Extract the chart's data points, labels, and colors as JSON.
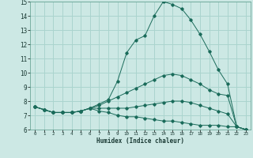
{
  "xlabel": "Humidex (Indice chaleur)",
  "bg_color": "#cce8e4",
  "grid_color": "#aad4ce",
  "line_color": "#1a6b5a",
  "xlim": [
    -0.5,
    23.5
  ],
  "ylim": [
    6,
    15
  ],
  "xticks": [
    0,
    1,
    2,
    3,
    4,
    5,
    6,
    7,
    8,
    9,
    10,
    11,
    12,
    13,
    14,
    15,
    16,
    17,
    18,
    19,
    20,
    21,
    22,
    23
  ],
  "yticks": [
    6,
    7,
    8,
    9,
    10,
    11,
    12,
    13,
    14,
    15
  ],
  "line1_x": [
    0,
    1,
    2,
    3,
    4,
    5,
    6,
    7,
    8,
    9,
    10,
    11,
    12,
    13,
    14,
    15,
    16,
    17,
    18,
    19,
    20,
    21,
    22,
    23
  ],
  "line1_y": [
    7.6,
    7.4,
    7.2,
    7.2,
    7.2,
    7.3,
    7.5,
    7.8,
    8.1,
    9.4,
    11.4,
    12.3,
    12.6,
    14.0,
    15.0,
    14.8,
    14.5,
    13.7,
    12.7,
    11.5,
    10.2,
    9.2,
    6.2,
    6.0
  ],
  "line2_x": [
    0,
    1,
    2,
    3,
    4,
    5,
    6,
    7,
    8,
    9,
    10,
    11,
    12,
    13,
    14,
    15,
    16,
    17,
    18,
    19,
    20,
    21,
    22,
    23
  ],
  "line2_y": [
    7.6,
    7.4,
    7.2,
    7.2,
    7.2,
    7.3,
    7.5,
    7.7,
    8.0,
    8.3,
    8.6,
    8.9,
    9.2,
    9.5,
    9.8,
    9.9,
    9.8,
    9.5,
    9.2,
    8.8,
    8.5,
    8.4,
    6.2,
    6.0
  ],
  "line3_x": [
    0,
    1,
    2,
    3,
    4,
    5,
    6,
    7,
    8,
    9,
    10,
    11,
    12,
    13,
    14,
    15,
    16,
    17,
    18,
    19,
    20,
    21,
    22,
    23
  ],
  "line3_y": [
    7.6,
    7.4,
    7.2,
    7.2,
    7.2,
    7.3,
    7.5,
    7.5,
    7.5,
    7.5,
    7.5,
    7.6,
    7.7,
    7.8,
    7.9,
    8.0,
    8.0,
    7.9,
    7.7,
    7.5,
    7.3,
    7.1,
    6.2,
    6.0
  ],
  "line4_x": [
    0,
    1,
    2,
    3,
    4,
    5,
    6,
    7,
    8,
    9,
    10,
    11,
    12,
    13,
    14,
    15,
    16,
    17,
    18,
    19,
    20,
    21,
    22,
    23
  ],
  "line4_y": [
    7.6,
    7.4,
    7.2,
    7.2,
    7.2,
    7.3,
    7.5,
    7.3,
    7.2,
    7.0,
    6.9,
    6.9,
    6.8,
    6.7,
    6.6,
    6.6,
    6.5,
    6.4,
    6.3,
    6.3,
    6.3,
    6.2,
    6.2,
    6.0
  ]
}
